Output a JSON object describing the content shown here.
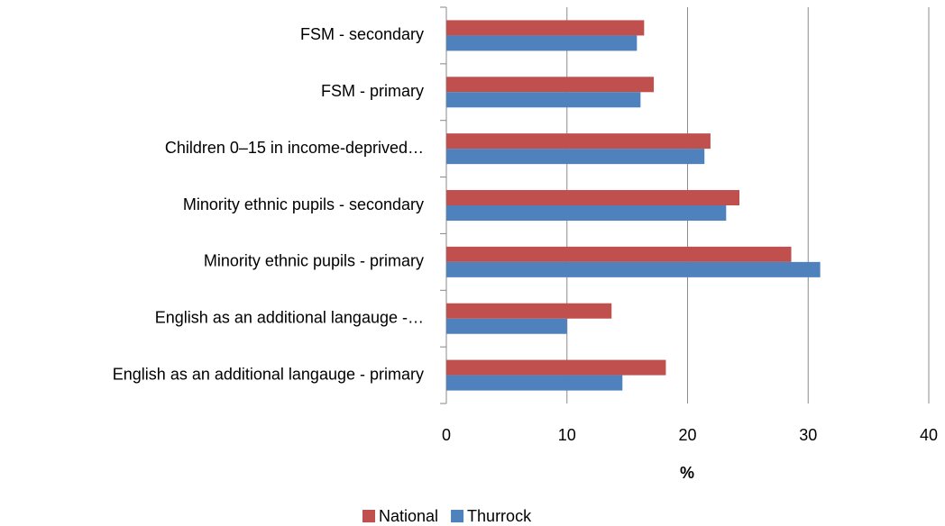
{
  "chart_data": {
    "type": "hbar",
    "categories": [
      "FSM - secondary",
      "FSM - primary",
      "Children 0–15 in income-deprived…",
      "Minority ethnic pupils - secondary",
      "Minority ethnic pupils - primary",
      "English as an additional langauge -…",
      "English as an additional langauge - primary"
    ],
    "series": [
      {
        "name": "National",
        "color": "#c0504d",
        "values": [
          16.4,
          17.2,
          21.9,
          24.3,
          28.6,
          13.7,
          18.2
        ]
      },
      {
        "name": "Thurrock",
        "color": "#4f81bd",
        "values": [
          15.8,
          16.1,
          21.4,
          23.2,
          31.0,
          10.0,
          14.6
        ]
      }
    ],
    "xlabel": "%",
    "xlim": [
      0,
      40
    ],
    "xticks": [
      0,
      10,
      20,
      30,
      40
    ],
    "grid": true,
    "legend": "bottom"
  }
}
